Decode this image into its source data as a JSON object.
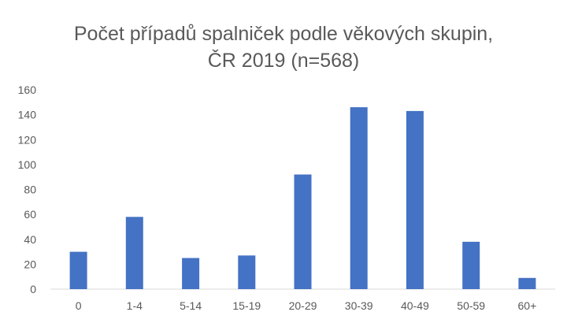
{
  "chart_data": {
    "type": "bar",
    "title_lines": [
      "Počet případů spalniček podle věkových skupin,",
      "ČR 2019 (n=568)"
    ],
    "xlabel": "",
    "ylabel": "",
    "categories": [
      "0",
      "1-4",
      "5-14",
      "15-19",
      "20-29",
      "30-39",
      "40-49",
      "50-59",
      "60+"
    ],
    "values": [
      30,
      58,
      25,
      27,
      92,
      146,
      143,
      38,
      9
    ],
    "ylim": [
      0,
      160
    ],
    "yticks": [
      "0",
      "20",
      "40",
      "60",
      "80",
      "100",
      "120",
      "140",
      "160"
    ],
    "grid": false,
    "legend": "none",
    "bar_color": "#4472C4",
    "axis_color": "#D9D9D9"
  }
}
